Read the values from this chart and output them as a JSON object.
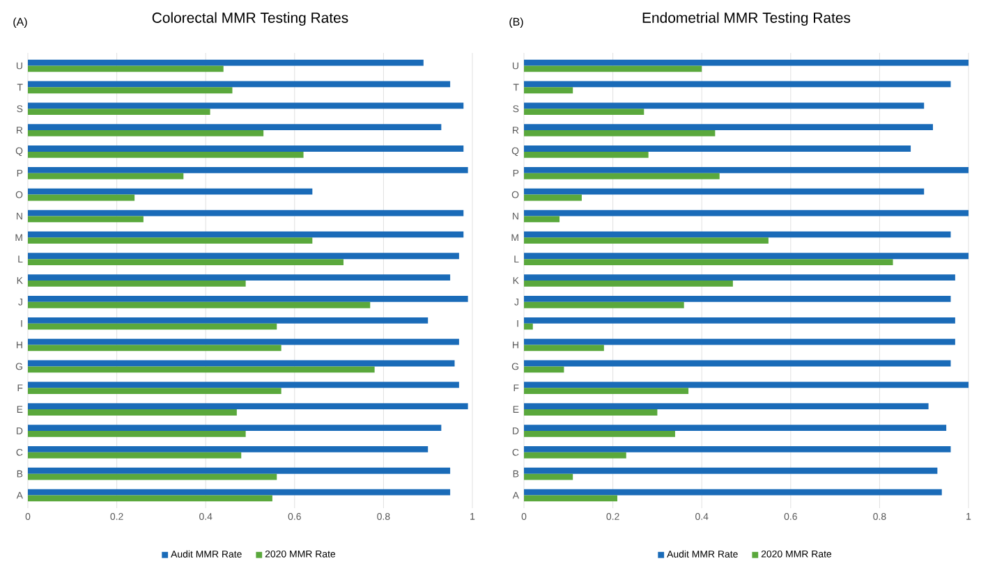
{
  "chart_data": [
    {
      "type": "bar",
      "orientation": "horizontal",
      "title": "Colorectal MMR Testing Rates",
      "annotations": [
        "(A)"
      ],
      "categories": [
        "U",
        "T",
        "S",
        "R",
        "Q",
        "P",
        "O",
        "N",
        "M",
        "L",
        "K",
        "J",
        "I",
        "H",
        "G",
        "F",
        "E",
        "D",
        "C",
        "B",
        "A"
      ],
      "series": [
        {
          "name": "Audit MMR Rate",
          "color": "#1a6bb8",
          "values": [
            0.89,
            0.95,
            0.98,
            0.93,
            0.98,
            0.99,
            0.64,
            0.98,
            0.98,
            0.97,
            0.95,
            0.99,
            0.9,
            0.97,
            0.96,
            0.97,
            0.99,
            0.93,
            0.9,
            0.95,
            0.95
          ]
        },
        {
          "name": "2020 MMR Rate",
          "color": "#5aa83c",
          "values": [
            0.44,
            0.46,
            0.41,
            0.53,
            0.62,
            0.35,
            0.24,
            0.26,
            0.64,
            0.71,
            0.49,
            0.77,
            0.56,
            0.57,
            0.78,
            0.57,
            0.47,
            0.49,
            0.48,
            0.56,
            0.55
          ]
        }
      ],
      "xlim": [
        0,
        1
      ],
      "xticks": [
        0,
        0.2,
        0.4,
        0.6,
        0.8,
        1
      ],
      "grid": "x",
      "legend": "bottom"
    },
    {
      "type": "bar",
      "orientation": "horizontal",
      "title": "Endometrial MMR Testing Rates",
      "annotations": [
        "(B)"
      ],
      "categories": [
        "U",
        "T",
        "S",
        "R",
        "Q",
        "P",
        "O",
        "N",
        "M",
        "L",
        "K",
        "J",
        "I",
        "H",
        "G",
        "F",
        "E",
        "D",
        "C",
        "B",
        "A"
      ],
      "series": [
        {
          "name": "Audit MMR Rate",
          "color": "#1a6bb8",
          "values": [
            1.0,
            0.96,
            0.9,
            0.92,
            0.87,
            1.0,
            0.9,
            1.0,
            0.96,
            1.0,
            0.97,
            0.96,
            0.97,
            0.97,
            0.96,
            1.0,
            0.91,
            0.95,
            0.96,
            0.93,
            0.94
          ]
        },
        {
          "name": "2020 MMR Rate",
          "color": "#5aa83c",
          "values": [
            0.4,
            0.11,
            0.27,
            0.43,
            0.28,
            0.44,
            0.13,
            0.08,
            0.55,
            0.83,
            0.47,
            0.36,
            0.02,
            0.18,
            0.09,
            0.37,
            0.3,
            0.34,
            0.23,
            0.11,
            0.21
          ]
        }
      ],
      "xlim": [
        0,
        1
      ],
      "xticks": [
        0,
        0.2,
        0.4,
        0.6,
        0.8,
        1
      ],
      "grid": "x",
      "legend": "bottom"
    }
  ]
}
